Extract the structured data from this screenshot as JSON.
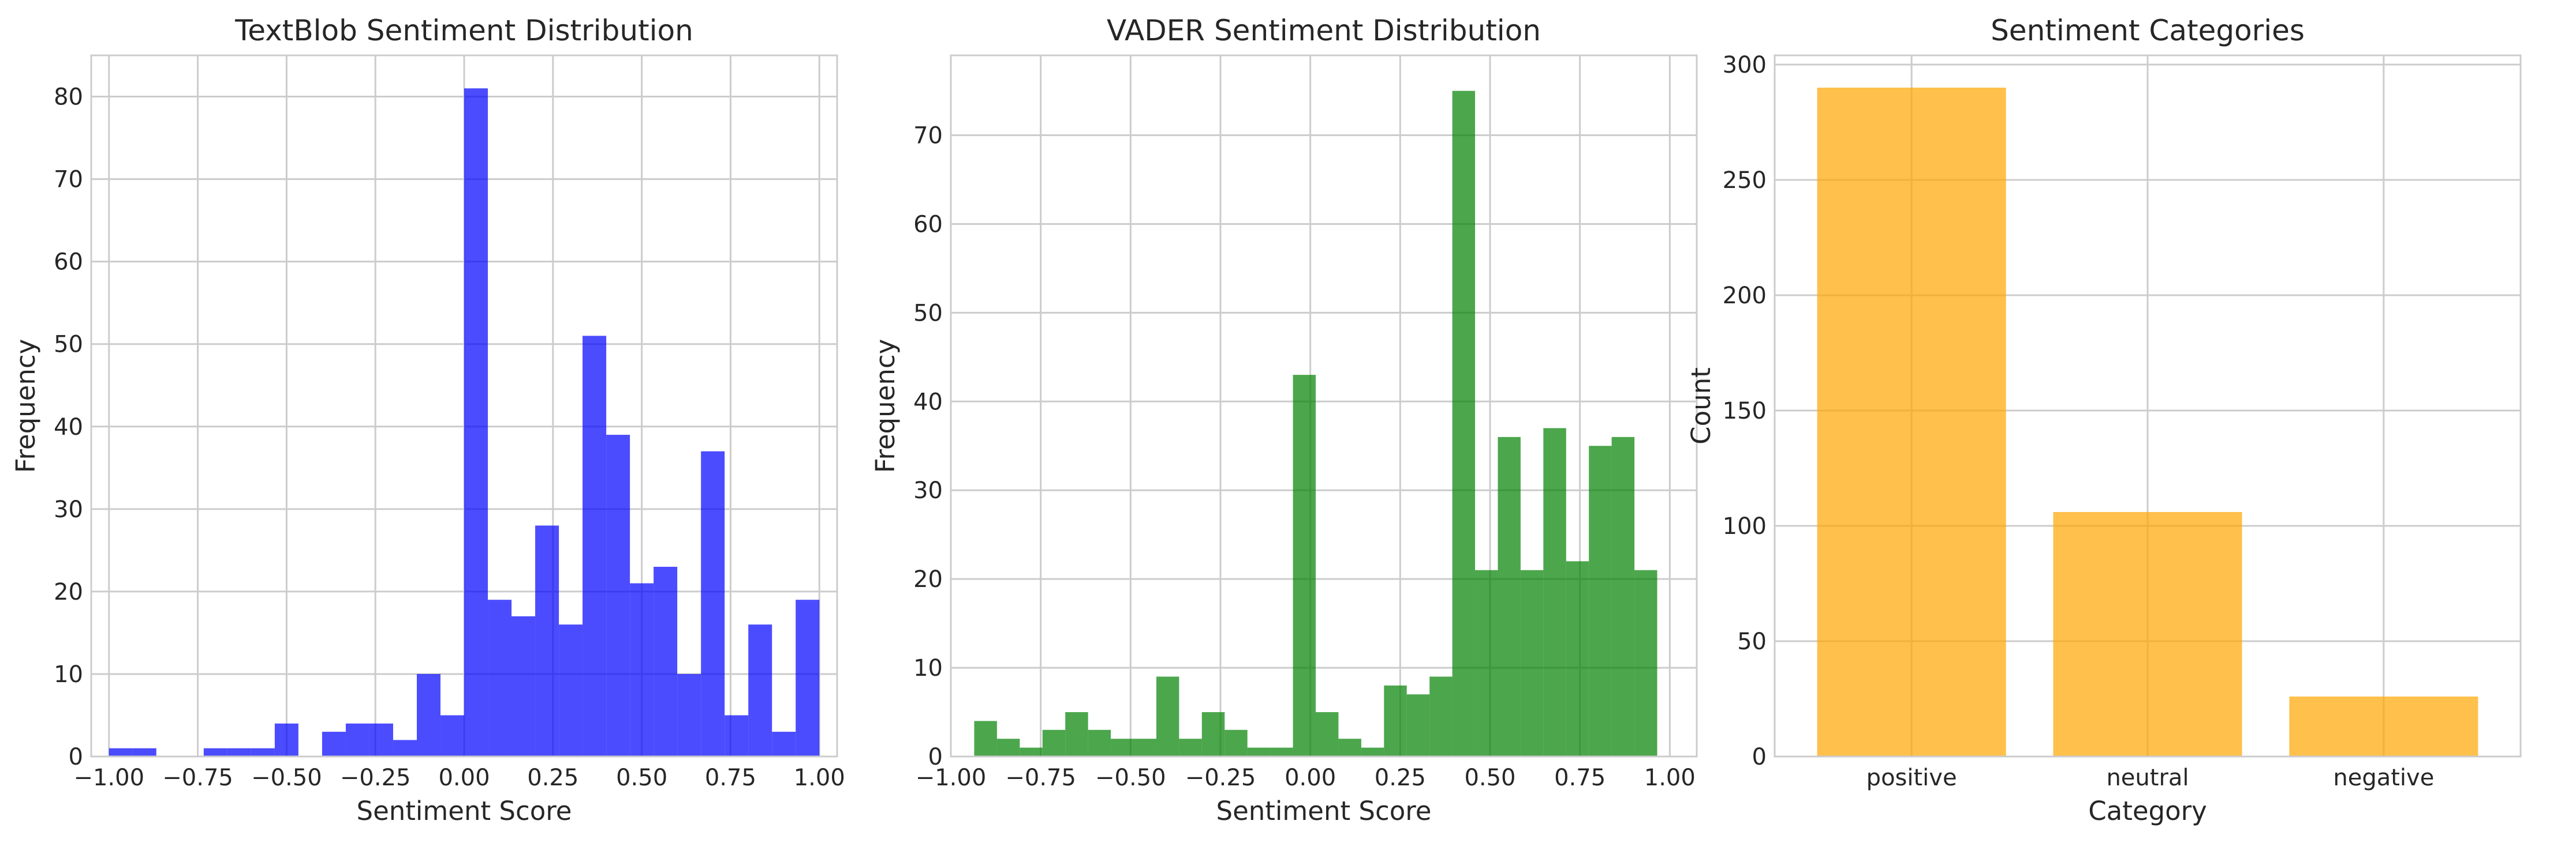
{
  "chart_data": [
    {
      "type": "bar",
      "subtype": "histogram",
      "title": "TextBlob Sentiment Distribution",
      "xlabel": "Sentiment Score",
      "ylabel": "Frequency",
      "xlim": [
        -1.05,
        1.05
      ],
      "ylim": [
        0,
        85
      ],
      "xticks": [
        -1.0,
        -0.75,
        -0.5,
        -0.25,
        0.0,
        0.25,
        0.5,
        0.75,
        1.0
      ],
      "xtick_labels": [
        "−1.00",
        "−0.75",
        "−0.50",
        "−0.25",
        "0.00",
        "0.25",
        "0.50",
        "0.75",
        "1.00"
      ],
      "yticks": [
        0,
        10,
        20,
        30,
        40,
        50,
        60,
        70,
        80
      ],
      "ytick_labels": [
        "0",
        "10",
        "20",
        "30",
        "40",
        "50",
        "60",
        "70",
        "80"
      ],
      "bin_edges": [
        -1.0,
        -0.9333,
        -0.8667,
        -0.8,
        -0.7333,
        -0.6667,
        -0.6,
        -0.5333,
        -0.4667,
        -0.4,
        -0.3333,
        -0.2667,
        -0.2,
        -0.1333,
        -0.0667,
        0.0,
        0.0667,
        0.1333,
        0.2,
        0.2667,
        0.3333,
        0.4,
        0.4667,
        0.5333,
        0.6,
        0.6667,
        0.7333,
        0.8,
        0.8667,
        0.9333,
        1.0
      ],
      "values": [
        1,
        1,
        0,
        0,
        1,
        1,
        1,
        4,
        0,
        3,
        4,
        4,
        2,
        10,
        5,
        81,
        19,
        17,
        28,
        16,
        51,
        39,
        21,
        23,
        10,
        37,
        5,
        16,
        3,
        19
      ],
      "color": "#0000ff",
      "grid": true
    },
    {
      "type": "bar",
      "subtype": "histogram",
      "title": "VADER Sentiment Distribution",
      "xlabel": "Sentiment Score",
      "ylabel": "Frequency",
      "xlim": [
        -1.0,
        1.075
      ],
      "ylim": [
        0,
        79
      ],
      "xticks": [
        -1.0,
        -0.75,
        -0.5,
        -0.25,
        0.0,
        0.25,
        0.5,
        0.75,
        1.0
      ],
      "xtick_labels": [
        "−1.00",
        "−0.75",
        "−0.50",
        "−0.25",
        "0.00",
        "0.25",
        "0.50",
        "0.75",
        "1.00"
      ],
      "yticks": [
        0,
        10,
        20,
        30,
        40,
        50,
        60,
        70
      ],
      "ytick_labels": [
        "0",
        "10",
        "20",
        "30",
        "40",
        "50",
        "60",
        "70"
      ],
      "bin_edges": [
        -0.935,
        -0.8717,
        -0.8083,
        -0.745,
        -0.6817,
        -0.6183,
        -0.555,
        -0.4917,
        -0.4283,
        -0.365,
        -0.3017,
        -0.2383,
        -0.175,
        -0.1117,
        -0.0483,
        0.015,
        0.0783,
        0.1417,
        0.205,
        0.2683,
        0.3317,
        0.395,
        0.4583,
        0.5217,
        0.585,
        0.6483,
        0.7117,
        0.775,
        0.8383,
        0.9017,
        0.965
      ],
      "values": [
        4,
        2,
        1,
        3,
        5,
        3,
        2,
        2,
        9,
        2,
        5,
        3,
        1,
        1,
        43,
        5,
        2,
        1,
        8,
        7,
        9,
        75,
        21,
        36,
        21,
        37,
        22,
        35,
        36,
        21
      ],
      "color": "#008000",
      "grid": true
    },
    {
      "type": "bar",
      "title": "Sentiment Categories",
      "xlabel": "Category",
      "ylabel": "Count",
      "categories": [
        "positive",
        "neutral",
        "negative"
      ],
      "values": [
        290,
        106,
        26
      ],
      "ylim": [
        0,
        304
      ],
      "yticks": [
        0,
        50,
        100,
        150,
        200,
        250,
        300
      ],
      "ytick_labels": [
        "0",
        "50",
        "100",
        "150",
        "200",
        "250",
        "300"
      ],
      "color": "#ffa500",
      "grid": true
    }
  ]
}
